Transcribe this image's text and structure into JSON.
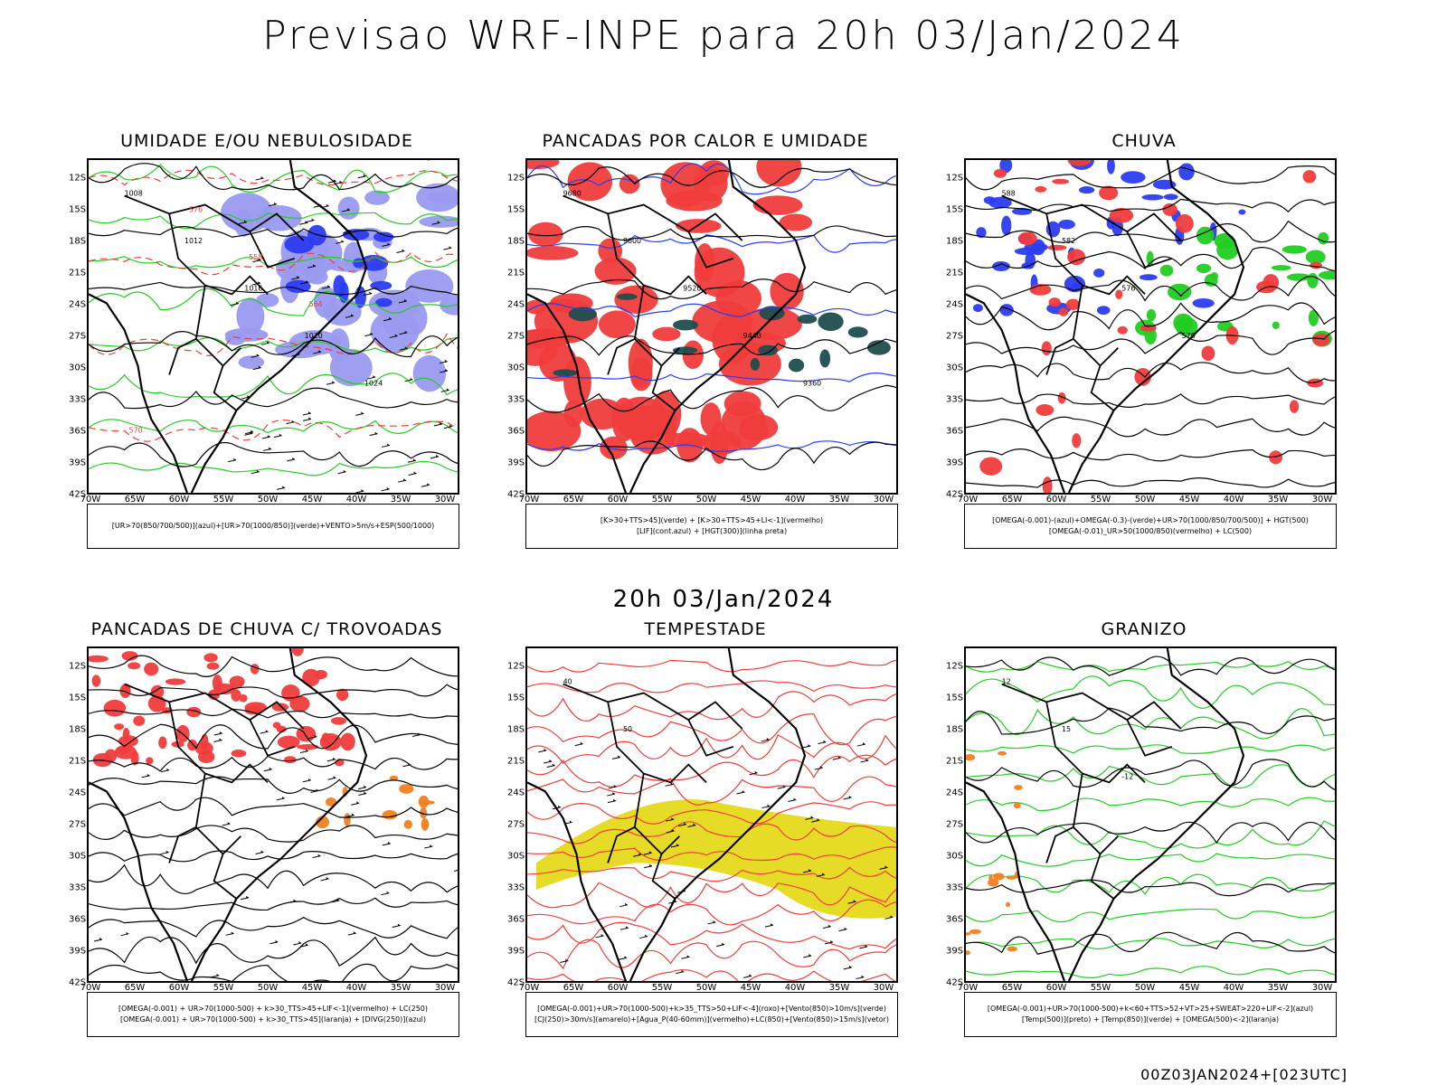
{
  "header": {
    "title": "Previsao WRF-INPE  para 20h 03/Jan/2024",
    "middle_title": "20h 03/Jan/2024",
    "footer": "00Z03JAN2024+[023UTC]"
  },
  "axes": {
    "lat_labels": [
      "12S",
      "15S",
      "18S",
      "21S",
      "24S",
      "27S",
      "30S",
      "33S",
      "36S",
      "39S",
      "42S"
    ],
    "lon_labels": [
      "70W",
      "65W",
      "60W",
      "55W",
      "50W",
      "45W",
      "40W",
      "35W",
      "30W"
    ]
  },
  "panels": [
    {
      "id": "umidade",
      "title": "UMIDADE E/OU NEBULOSIDADE",
      "legend": [
        "[UR>70(850/700/500)](azul)+[UR>70(1000/850)](verde)+VENTO>5m/s+ESP(500/1000)"
      ],
      "contour_labels": [
        "1008",
        "1012",
        "1016",
        "1020",
        "1024",
        "570",
        "576",
        "558",
        "564"
      ]
    },
    {
      "id": "pancadas-calor",
      "title": "PANCADAS POR CALOR E UMIDADE",
      "legend": [
        "[K>30+TTS>45](verde) + [K>30+TTS>45+LI<-1](vermelho)",
        "[LIF](cont.azul) + [HGT(300)](linha preta)"
      ],
      "contour_labels": [
        "9680",
        "9600",
        "9520",
        "9440",
        "9360"
      ]
    },
    {
      "id": "chuva",
      "title": "CHUVA",
      "legend": [
        "[OMEGA(-0.001)-(azul)+OMEGA(-0.3)-(verde)+UR>70(1000/850/700/500)] + HGT(500)",
        "[OMEGA(-0.01)_UR>50(1000/850)(vermelho) + LC(500)"
      ],
      "contour_labels": [
        "588",
        "582",
        "576",
        "570"
      ]
    },
    {
      "id": "trovoadas",
      "title": "PANCADAS DE CHUVA C/ TROVOADAS",
      "legend": [
        "[OMEGA(-0.001) + UR>70(1000-500) + k>30_TTS>45+LIF<-1](vermelho) + LC(250)",
        "[OMEGA(-0.001) + UR>70(1000-500) + k>30_TTS>45](laranja) + [DIVG(250)](azul)"
      ],
      "contour_labels": []
    },
    {
      "id": "tempestade",
      "title": "TEMPESTADE",
      "legend": [
        "[OMEGA(-0.001)+UR>70(1000-500)+k>35_TTS>50+LIF<-4](roxo)+[Vento(850)>10m/s](verde)",
        "[CJ(250)>30m/s](amarelo)+[Agua_P(40-60mm)](vermelho)+LC(850)+[Vento(850)>15m/s](vetor)"
      ],
      "contour_labels": [
        "40",
        "50"
      ]
    },
    {
      "id": "granizo",
      "title": "GRANIZO",
      "legend": [
        "[OMEGA(-0.001)+UR>70(1000-500)+k<60+TTS>52+VT>25+SWEAT>220+LIF<-2](azul)",
        "[Temp(500)](preto) + [Temp(850)](verde) + [OMEGA(500)<-2](laranja)"
      ],
      "contour_labels": [
        "12",
        "15",
        "-12"
      ]
    }
  ],
  "colors": {
    "red": "#f03c3c",
    "green": "#22cc22",
    "blue": "#2b3cf0",
    "lavender": "#9a9af0",
    "orange": "#f08020",
    "yellow": "#e6dc28",
    "darkgreen": "#1f4d4d"
  }
}
